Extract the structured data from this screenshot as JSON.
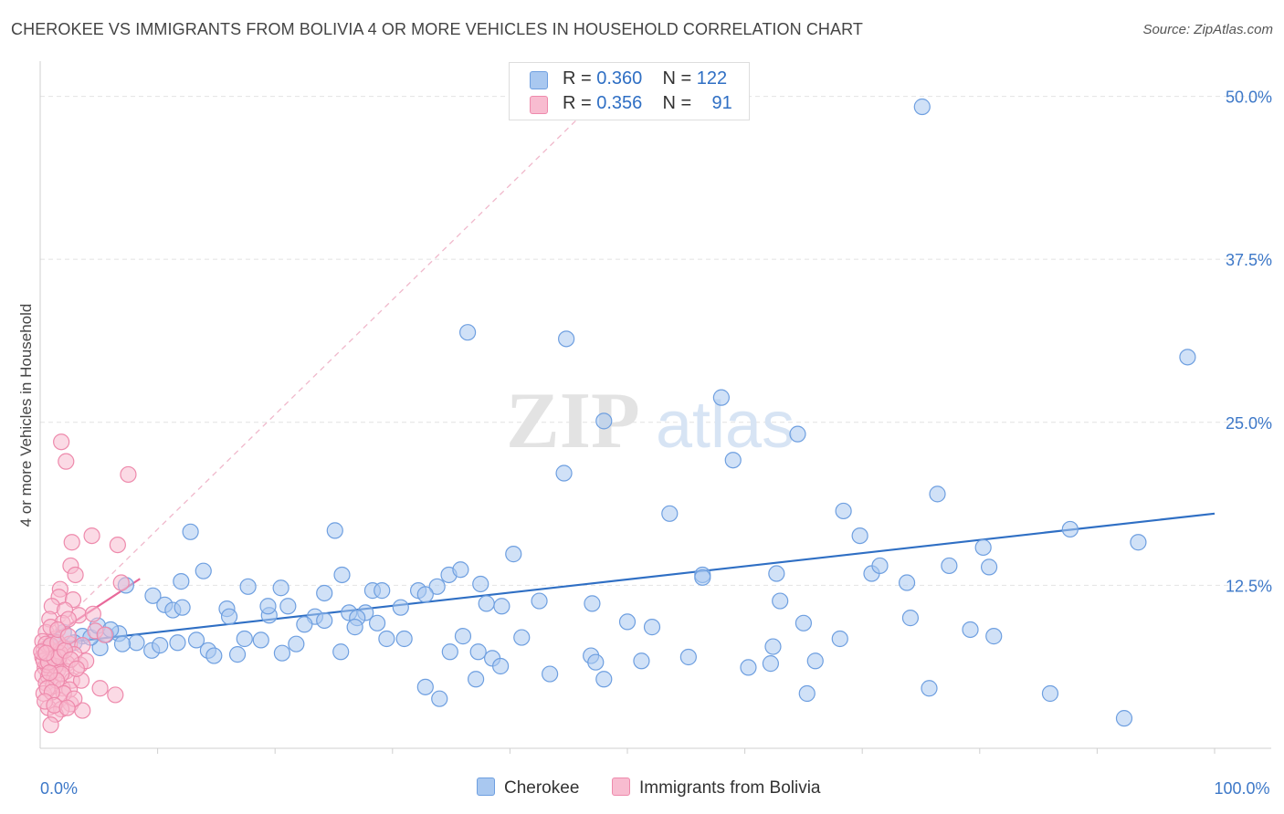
{
  "title": "CHEROKEE VS IMMIGRANTS FROM BOLIVIA 4 OR MORE VEHICLES IN HOUSEHOLD CORRELATION CHART",
  "source": "Source: ZipAtlas.com",
  "watermark": {
    "part1": "ZIP",
    "part2": "atlas"
  },
  "legend_top": {
    "rows": [
      {
        "r_label": "R =",
        "r_value": "0.360",
        "n_label": "N =",
        "n_value": "122",
        "color": "#a9c8f0",
        "border": "#6e9fe0"
      },
      {
        "r_label": "R =",
        "r_value": "0.356",
        "n_label": "N =",
        "n_value": "91",
        "color": "#f8bcd0",
        "border": "#ee8aac"
      }
    ]
  },
  "legend_bottom": [
    {
      "label": "Cherokee",
      "color": "#a9c8f0",
      "border": "#6e9fe0"
    },
    {
      "label": "Immigrants from Bolivia",
      "color": "#f8bcd0",
      "border": "#ee8aac"
    }
  ],
  "chart_data": {
    "type": "scatter",
    "title": "CHEROKEE VS IMMIGRANTS FROM BOLIVIA 4 OR MORE VEHICLES IN HOUSEHOLD CORRELATION CHART",
    "xlabel": "",
    "ylabel": "4 or more Vehicles in Household",
    "xlim": [
      0,
      100
    ],
    "ylim": [
      0,
      52
    ],
    "x_tick_labels": [
      {
        "value": 0,
        "label": "0.0%"
      },
      {
        "value": 100,
        "label": "100.0%"
      }
    ],
    "y_tick_labels": [
      {
        "value": 12.5,
        "label": "12.5%"
      },
      {
        "value": 25.0,
        "label": "25.0%"
      },
      {
        "value": 37.5,
        "label": "37.5%"
      },
      {
        "value": 50.0,
        "label": "50.0%"
      }
    ],
    "x_minor_ticks": [
      10,
      20,
      30,
      40,
      50,
      60,
      70,
      80,
      90,
      100
    ],
    "grid": true,
    "colors": {
      "cherokee": "#6e9fe0",
      "cherokee_fill": "#a9c8f0",
      "cherokee_line": "#2f6fc4",
      "bolivia": "#ee8aac",
      "bolivia_fill": "#f8bcd0",
      "bolivia_line": "#e8699a"
    },
    "series": [
      {
        "name": "Cherokee",
        "r": 0.36,
        "n": 122,
        "trend": {
          "x1": 0,
          "y1": 7.9,
          "x2": 100,
          "y2": 18.0,
          "style": "solid"
        },
        "points": [
          [
            75.1,
            49.2
          ],
          [
            36.4,
            31.9
          ],
          [
            44.8,
            31.4
          ],
          [
            97.7,
            30.0
          ],
          [
            58.0,
            26.9
          ],
          [
            48.0,
            25.1
          ],
          [
            64.5,
            24.1
          ],
          [
            59.0,
            22.1
          ],
          [
            44.6,
            21.1
          ],
          [
            76.4,
            19.5
          ],
          [
            53.6,
            18.0
          ],
          [
            68.4,
            18.2
          ],
          [
            87.7,
            16.8
          ],
          [
            69.8,
            16.3
          ],
          [
            93.5,
            15.8
          ],
          [
            25.1,
            16.7
          ],
          [
            12.8,
            16.6
          ],
          [
            40.3,
            14.9
          ],
          [
            56.4,
            13.3
          ],
          [
            62.7,
            13.4
          ],
          [
            70.8,
            13.4
          ],
          [
            56.4,
            13.1
          ],
          [
            71.5,
            14.0
          ],
          [
            77.4,
            14.0
          ],
          [
            80.3,
            15.4
          ],
          [
            13.9,
            13.6
          ],
          [
            12.0,
            12.8
          ],
          [
            7.3,
            12.5
          ],
          [
            17.7,
            12.4
          ],
          [
            20.5,
            12.3
          ],
          [
            25.7,
            13.3
          ],
          [
            28.3,
            12.1
          ],
          [
            30.7,
            10.8
          ],
          [
            32.2,
            12.1
          ],
          [
            33.8,
            12.4
          ],
          [
            34.8,
            13.3
          ],
          [
            35.8,
            13.7
          ],
          [
            37.5,
            12.6
          ],
          [
            32.8,
            11.8
          ],
          [
            29.1,
            12.1
          ],
          [
            21.1,
            10.9
          ],
          [
            24.2,
            11.9
          ],
          [
            27.7,
            10.4
          ],
          [
            9.6,
            11.7
          ],
          [
            10.6,
            11.0
          ],
          [
            11.3,
            10.6
          ],
          [
            12.1,
            10.8
          ],
          [
            15.9,
            10.7
          ],
          [
            16.1,
            10.1
          ],
          [
            19.5,
            10.2
          ],
          [
            23.4,
            10.1
          ],
          [
            24.2,
            9.8
          ],
          [
            26.3,
            10.4
          ],
          [
            27.0,
            10.0
          ],
          [
            28.7,
            9.6
          ],
          [
            38.0,
            11.1
          ],
          [
            39.3,
            10.9
          ],
          [
            42.5,
            11.3
          ],
          [
            47.0,
            11.1
          ],
          [
            50.0,
            9.7
          ],
          [
            52.1,
            9.3
          ],
          [
            63.0,
            11.3
          ],
          [
            65.0,
            9.6
          ],
          [
            74.1,
            10.0
          ],
          [
            79.2,
            9.1
          ],
          [
            81.2,
            8.6
          ],
          [
            68.1,
            8.4
          ],
          [
            62.4,
            7.8
          ],
          [
            41.0,
            8.5
          ],
          [
            36.0,
            8.6
          ],
          [
            31.0,
            8.4
          ],
          [
            29.5,
            8.4
          ],
          [
            21.8,
            8.0
          ],
          [
            18.8,
            8.3
          ],
          [
            17.4,
            8.4
          ],
          [
            13.3,
            8.3
          ],
          [
            8.2,
            8.1
          ],
          [
            6.7,
            8.8
          ],
          [
            5.1,
            7.7
          ],
          [
            9.5,
            7.5
          ],
          [
            10.2,
            7.9
          ],
          [
            14.3,
            7.5
          ],
          [
            14.8,
            7.1
          ],
          [
            16.8,
            7.2
          ],
          [
            20.6,
            7.3
          ],
          [
            25.6,
            7.4
          ],
          [
            34.9,
            7.4
          ],
          [
            37.3,
            7.4
          ],
          [
            38.5,
            6.9
          ],
          [
            39.2,
            6.3
          ],
          [
            46.9,
            7.1
          ],
          [
            51.2,
            6.7
          ],
          [
            55.2,
            7.0
          ],
          [
            60.3,
            6.2
          ],
          [
            62.2,
            6.5
          ],
          [
            66.0,
            6.7
          ],
          [
            43.4,
            5.7
          ],
          [
            47.3,
            6.6
          ],
          [
            48.0,
            5.3
          ],
          [
            32.8,
            4.7
          ],
          [
            37.1,
            5.3
          ],
          [
            34.0,
            3.8
          ],
          [
            65.3,
            4.2
          ],
          [
            75.7,
            4.6
          ],
          [
            86.0,
            4.2
          ],
          [
            92.3,
            2.3
          ],
          [
            80.8,
            13.9
          ],
          [
            73.8,
            12.7
          ],
          [
            2.0,
            8.9
          ],
          [
            3.6,
            8.6
          ],
          [
            4.3,
            8.5
          ],
          [
            5.6,
            8.7
          ],
          [
            1.1,
            8.2
          ],
          [
            2.9,
            8.1
          ],
          [
            0.9,
            7.8
          ],
          [
            7.0,
            8.0
          ],
          [
            11.7,
            8.1
          ],
          [
            22.5,
            9.5
          ],
          [
            26.8,
            9.3
          ],
          [
            19.4,
            10.9
          ],
          [
            4.9,
            9.4
          ],
          [
            6.0,
            9.1
          ]
        ]
      },
      {
        "name": "Immigrants from Bolivia",
        "r": 0.356,
        "n": 91,
        "trend": {
          "x1": 0,
          "y1": 8.0,
          "x2": 8.5,
          "y2": 13.0,
          "style": "solid",
          "extended": {
            "x2": 50,
            "y2": 52,
            "style": "dashed"
          }
        },
        "points": [
          [
            1.8,
            23.5
          ],
          [
            2.2,
            22.0
          ],
          [
            7.5,
            21.0
          ],
          [
            4.4,
            16.3
          ],
          [
            2.7,
            15.8
          ],
          [
            6.6,
            15.6
          ],
          [
            2.6,
            14.0
          ],
          [
            3.0,
            13.3
          ],
          [
            6.9,
            12.7
          ],
          [
            1.7,
            12.2
          ],
          [
            1.6,
            11.6
          ],
          [
            2.8,
            11.4
          ],
          [
            1.0,
            10.9
          ],
          [
            2.1,
            10.6
          ],
          [
            3.3,
            10.2
          ],
          [
            4.5,
            10.3
          ],
          [
            0.8,
            9.9
          ],
          [
            1.9,
            9.6
          ],
          [
            2.4,
            9.9
          ],
          [
            4.7,
            9.0
          ],
          [
            5.5,
            8.7
          ],
          [
            0.5,
            8.9
          ],
          [
            1.3,
            8.4
          ],
          [
            2.5,
            8.0
          ],
          [
            3.6,
            7.9
          ],
          [
            0.3,
            7.5
          ],
          [
            0.8,
            7.6
          ],
          [
            1.4,
            7.4
          ],
          [
            2.0,
            7.7
          ],
          [
            2.9,
            7.2
          ],
          [
            0.2,
            7.0
          ],
          [
            0.6,
            6.9
          ],
          [
            1.0,
            6.8
          ],
          [
            1.6,
            6.6
          ],
          [
            2.3,
            6.5
          ],
          [
            3.4,
            6.4
          ],
          [
            0.4,
            6.2
          ],
          [
            0.9,
            6.1
          ],
          [
            1.5,
            6.0
          ],
          [
            2.2,
            5.9
          ],
          [
            0.2,
            5.6
          ],
          [
            0.7,
            5.5
          ],
          [
            1.2,
            5.4
          ],
          [
            2.7,
            5.2
          ],
          [
            3.5,
            5.2
          ],
          [
            0.5,
            5.0
          ],
          [
            1.1,
            4.8
          ],
          [
            1.9,
            4.6
          ],
          [
            2.5,
            4.5
          ],
          [
            5.1,
            4.6
          ],
          [
            6.4,
            4.1
          ],
          [
            0.3,
            4.2
          ],
          [
            1.6,
            3.7
          ],
          [
            2.6,
            3.4
          ],
          [
            0.7,
            3.1
          ],
          [
            1.8,
            3.0
          ],
          [
            3.6,
            2.9
          ],
          [
            1.3,
            2.6
          ],
          [
            0.9,
            1.8
          ],
          [
            0.4,
            7.2
          ],
          [
            1.1,
            7.1
          ],
          [
            1.7,
            7.3
          ],
          [
            0.6,
            6.4
          ],
          [
            1.3,
            6.3
          ],
          [
            1.8,
            5.7
          ],
          [
            3.9,
            6.7
          ],
          [
            0.2,
            8.2
          ],
          [
            0.5,
            8.0
          ],
          [
            0.9,
            7.9
          ],
          [
            1.5,
            8.1
          ],
          [
            0.3,
            6.7
          ],
          [
            0.7,
            6.6
          ],
          [
            1.4,
            5.2
          ],
          [
            2.0,
            4.2
          ],
          [
            2.9,
            3.8
          ],
          [
            0.6,
            4.6
          ],
          [
            1.0,
            4.3
          ],
          [
            0.4,
            3.6
          ],
          [
            1.2,
            3.3
          ],
          [
            2.3,
            3.1
          ],
          [
            0.8,
            5.8
          ],
          [
            1.2,
            6.9
          ],
          [
            1.6,
            7.0
          ],
          [
            0.1,
            7.4
          ],
          [
            0.5,
            7.3
          ],
          [
            2.1,
            7.5
          ],
          [
            2.6,
            6.8
          ],
          [
            3.1,
            6.1
          ],
          [
            0.9,
            9.3
          ],
          [
            1.5,
            9.1
          ],
          [
            2.4,
            8.6
          ]
        ]
      }
    ]
  }
}
